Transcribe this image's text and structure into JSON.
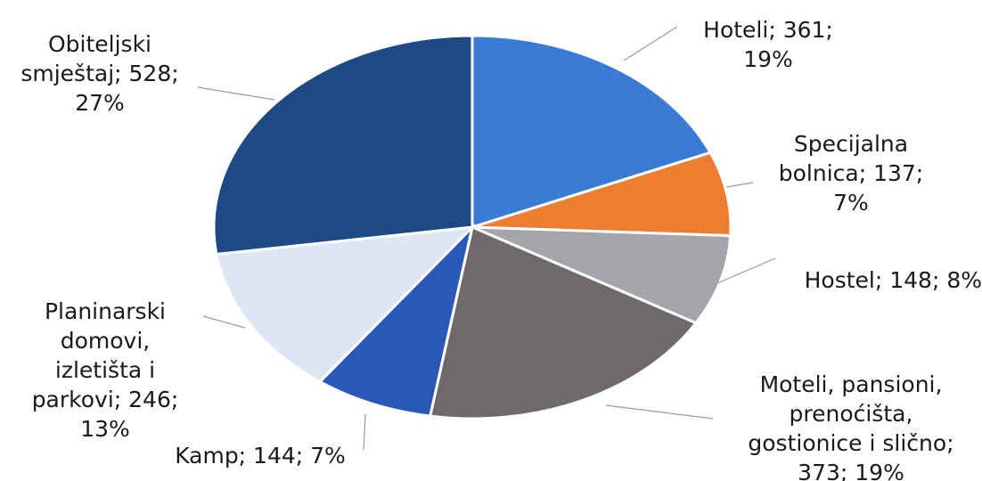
{
  "chart_data": {
    "type": "pie",
    "slices": [
      {
        "name": "Hoteli",
        "value": 361,
        "percent": "19%",
        "color": "#3a7bd5",
        "label_lines": [
          "Hoteli; 361;",
          "19%"
        ]
      },
      {
        "name": "Specijalna bolnica",
        "value": 137,
        "percent": "7%",
        "color": "#ed7d31",
        "label_lines": [
          "Specijalna",
          "bolnica; 137;",
          "7%"
        ]
      },
      {
        "name": "Hostel",
        "value": 148,
        "percent": "8%",
        "color": "#a5a5a9",
        "label_lines": [
          "Hostel; 148; 8%"
        ]
      },
      {
        "name": "Moteli, pansioni, prenoćišta, gostionice i slično",
        "value": 373,
        "percent": "19%",
        "color": "#6e6a6c",
        "label_lines": [
          "Moteli, pansioni,",
          "prenoćišta,",
          "gostionice i slično;",
          "373; 19%"
        ]
      },
      {
        "name": "Kamp",
        "value": 144,
        "percent": "7%",
        "color": "#2a58b8",
        "label_lines": [
          "Kamp; 144; 7%"
        ]
      },
      {
        "name": "Planinarski domovi, izletišta i parkovi",
        "value": 246,
        "percent": "13%",
        "color": "#dde6f4",
        "label_lines": [
          "Planinarski",
          "domovi,",
          "izletišta i",
          "parkovi; 246;",
          "13%"
        ]
      },
      {
        "name": "Obiteljski smještaj",
        "value": 528,
        "percent": "27%",
        "color": "#1d4a84",
        "label_lines": [
          "Obiteljski",
          "smještaj; 528;",
          "27%"
        ]
      }
    ]
  }
}
